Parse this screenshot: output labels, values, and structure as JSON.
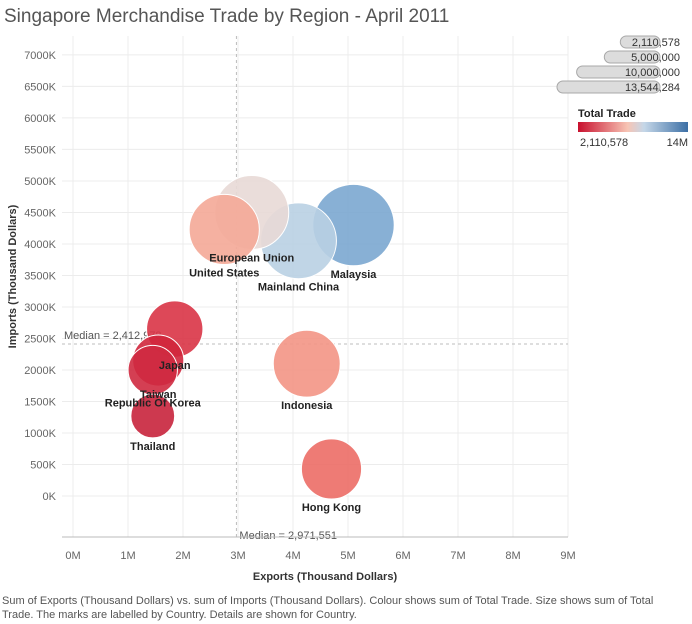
{
  "title": "Singapore Merchandise Trade by Region - April 2011",
  "caption": "Sum of Exports (Thousand Dollars) vs. sum of Imports (Thousand Dollars).  Colour shows sum of Total Trade.  Size shows sum of Total Trade.  The marks are labelled by Country.  Details are shown for Country.",
  "chart_data": {
    "type": "scatter",
    "title": "Singapore Merchandise Trade by Region - April 2011",
    "xlabel": "Exports (Thousand Dollars)",
    "ylabel": "Imports (Thousand Dollars)",
    "xlim": [
      -200000,
      9000000
    ],
    "ylim": [
      -650000,
      7300000
    ],
    "x_ticks": [
      0,
      1000000,
      2000000,
      3000000,
      4000000,
      5000000,
      6000000,
      7000000,
      8000000,
      9000000
    ],
    "x_tick_labels": [
      "0M",
      "1M",
      "2M",
      "3M",
      "4M",
      "5M",
      "6M",
      "7M",
      "8M",
      "9M"
    ],
    "y_ticks": [
      0,
      500000,
      1000000,
      1500000,
      2000000,
      2500000,
      3000000,
      3500000,
      4000000,
      4500000,
      5000000,
      5500000,
      6000000,
      6500000,
      7000000
    ],
    "y_tick_labels": [
      "0K",
      "500K",
      "1000K",
      "1500K",
      "2000K",
      "2500K",
      "3000K",
      "3500K",
      "4000K",
      "4500K",
      "5000K",
      "5500K",
      "6000K",
      "6500K",
      "7000K"
    ],
    "grid": true,
    "points": [
      {
        "label": "European Union",
        "x": 3250000,
        "y": 4500000,
        "total": 7750000,
        "color": "#e8d9d6"
      },
      {
        "label": "United States",
        "x": 2750000,
        "y": 4230000,
        "total": 6980000,
        "color": "#f4a997"
      },
      {
        "label": "Malaysia",
        "x": 5100000,
        "y": 4300000,
        "total": 9400000,
        "color": "#7ba7d0"
      },
      {
        "label": "Mainland China",
        "x": 4100000,
        "y": 4050000,
        "total": 8150000,
        "color": "#b9d0e3"
      },
      {
        "label": "Japan",
        "x": 1850000,
        "y": 2650000,
        "total": 4500000,
        "color": "#d93446"
      },
      {
        "label": "Taiwan",
        "x": 1550000,
        "y": 2150000,
        "total": 3700000,
        "color": "#d0263c"
      },
      {
        "label": "Republic Of Korea",
        "x": 1450000,
        "y": 2000000,
        "total": 3450000,
        "color": "#cf2a40"
      },
      {
        "label": "Indonesia",
        "x": 4250000,
        "y": 2100000,
        "total": 6350000,
        "color": "#f39585"
      },
      {
        "label": "Thailand",
        "x": 1450000,
        "y": 1270000,
        "total": 2720000,
        "color": "#c8243c"
      },
      {
        "label": "Hong Kong",
        "x": 4700000,
        "y": 430000,
        "total": 5130000,
        "color": "#ec6d66"
      }
    ],
    "medians": {
      "x": 2971551,
      "y": 2412978,
      "x_label": "Median = 2,971,551",
      "y_label": "Median = 2,412,978"
    },
    "size_legend": {
      "title": "",
      "values": [
        2110578,
        5000000,
        10000000,
        13544284
      ],
      "labels": [
        "2,110,578",
        "5,000,000",
        "10,000,000",
        "13,544,284"
      ]
    },
    "color_legend": {
      "title": "Total Trade",
      "min_label": "2,110,578",
      "max_label": "14M",
      "min_color": "#c8102e",
      "mid_color": "#f7c4b4",
      "max_color": "#3c6fa5"
    }
  }
}
